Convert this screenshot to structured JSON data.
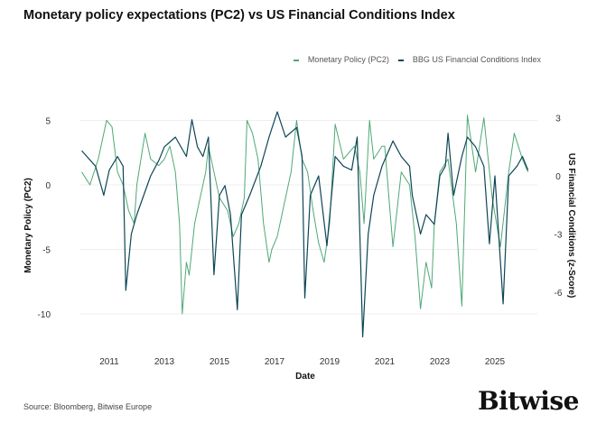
{
  "chart_data": {
    "type": "line",
    "title": "Monetary policy expectations (PC2) vs US Financial Conditions Index",
    "xlabel": "Date",
    "ylabel": "Monetary Policy (PC2)",
    "y2label": "US Financial Conditions (z-Score)",
    "x_ticks": [
      "2011",
      "2013",
      "2015",
      "2017",
      "2019",
      "2021",
      "2023",
      "2025"
    ],
    "y_ticks": [
      "5",
      "0",
      "-5",
      "-10"
    ],
    "y2_ticks": [
      "3",
      "0",
      "-3",
      "-6"
    ],
    "ylim": [
      -11,
      5.5
    ],
    "y2lim": [
      -8.5,
      3.5
    ],
    "grid": true,
    "legend_position": "top-right",
    "series": [
      {
        "name": "Monetary Policy (PC2)",
        "axis": "left",
        "color": "#4fa877",
        "x": [
          2010.0,
          2010.3,
          2010.6,
          2010.9,
          2011.1,
          2011.3,
          2011.5,
          2011.7,
          2011.9,
          2012.0,
          2012.3,
          2012.5,
          2012.8,
          2013.0,
          2013.2,
          2013.4,
          2013.55,
          2013.65,
          2013.8,
          2013.9,
          2014.1,
          2014.3,
          2014.5,
          2014.6,
          2014.8,
          2015.0,
          2015.3,
          2015.5,
          2015.7,
          2015.9,
          2016.0,
          2016.2,
          2016.4,
          2016.6,
          2016.8,
          2016.9,
          2017.1,
          2017.3,
          2017.6,
          2017.8,
          2018.0,
          2018.2,
          2018.4,
          2018.6,
          2018.8,
          2019.0,
          2019.2,
          2019.5,
          2019.9,
          2020.1,
          2020.25,
          2020.45,
          2020.6,
          2020.9,
          2021.0,
          2021.3,
          2021.6,
          2021.9,
          2022.1,
          2022.3,
          2022.5,
          2022.7,
          2022.8,
          2023.0,
          2023.3,
          2023.6,
          2023.8,
          2024.0,
          2024.3,
          2024.6,
          2024.9,
          2025.2,
          2025.5,
          2025.7,
          2026.0,
          2026.2
        ],
        "y": [
          1,
          0,
          2,
          5,
          4.5,
          1,
          0,
          -2,
          -3,
          0,
          4,
          2,
          1.5,
          2,
          3,
          1,
          -3,
          -10,
          -6,
          -7,
          -3,
          -1,
          1,
          3,
          1,
          -1,
          -2,
          -4,
          -3,
          -1,
          5,
          4,
          2,
          -3,
          -6,
          -5,
          -4,
          -2,
          1,
          5,
          2,
          1,
          -2,
          -4.5,
          -6,
          -3,
          4.7,
          2,
          3,
          1,
          -3,
          5,
          2,
          3,
          3,
          -4.8,
          1,
          0,
          -4,
          -9.6,
          -6,
          -8,
          -3,
          1,
          2,
          -3,
          -9.4,
          5.4,
          1,
          5.2,
          -1,
          -4.8,
          1,
          4,
          2,
          1
        ]
      },
      {
        "name": "BBG US Financial Conditions Index",
        "axis": "right",
        "color": "#0d4656",
        "x": [
          2010.0,
          2010.5,
          2010.8,
          2011.0,
          2011.3,
          2011.5,
          2011.6,
          2011.8,
          2012.0,
          2012.5,
          2012.8,
          2013.0,
          2013.4,
          2013.8,
          2014.0,
          2014.2,
          2014.4,
          2014.6,
          2014.8,
          2015.0,
          2015.2,
          2015.4,
          2015.65,
          2015.8,
          2016.1,
          2016.5,
          2016.8,
          2017.1,
          2017.4,
          2017.8,
          2018.0,
          2018.1,
          2018.3,
          2018.6,
          2018.9,
          2019.2,
          2019.5,
          2019.8,
          2020.0,
          2020.2,
          2020.4,
          2020.6,
          2020.9,
          2021.3,
          2021.6,
          2021.9,
          2022.0,
          2022.3,
          2022.5,
          2022.8,
          2023.0,
          2023.2,
          2023.3,
          2023.5,
          2023.8,
          2024.0,
          2024.3,
          2024.6,
          2024.8,
          2025.0,
          2025.3,
          2025.5,
          2025.8,
          2026.0,
          2026.2
        ],
        "y": [
          1.3,
          0.5,
          -1,
          0.3,
          1,
          0.5,
          -5.9,
          -3,
          -2,
          0,
          0.8,
          1.5,
          2,
          1,
          2.9,
          1.5,
          1,
          2,
          -5.1,
          -1,
          -0.5,
          -2,
          -6.9,
          -2,
          -1,
          0.5,
          2,
          3.3,
          2,
          2.5,
          1,
          -6.3,
          -1,
          0,
          -3.6,
          1,
          0.5,
          0.3,
          2,
          -8.3,
          -3,
          -1,
          0.5,
          1.8,
          1,
          0.5,
          -1,
          -3,
          -2,
          -2.5,
          0,
          0.5,
          2.2,
          -1,
          1,
          2,
          1.5,
          0.5,
          -3.5,
          0,
          -6.6,
          0,
          0.5,
          1,
          0.3
        ]
      }
    ]
  },
  "footer": {
    "source": "Source: Bloomberg, Bitwise Europe",
    "logo": "Bitwise"
  }
}
